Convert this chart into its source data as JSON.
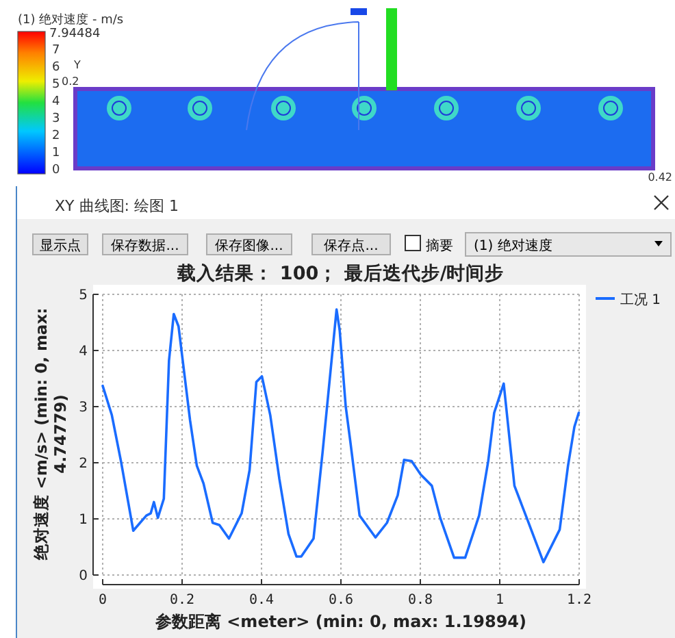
{
  "chart_data": [
    {
      "type": "other",
      "annotations": [
        "(1) 绝对速度 - m/s",
        "7.94484",
        "7",
        "6",
        "5",
        "4",
        "3",
        "2",
        "1",
        "0",
        "Y",
        "0.2",
        "0.42",
        "XY 曲线图: 绘图 1",
        "显示点",
        "保存数据...",
        "保存图像...",
        "保存点...",
        "摘要",
        "(1) 绝对速度"
      ]
    },
    {
      "type": "line",
      "title": "载入结果： 100； 最后迭代步/时间步",
      "xlabel": "参数距离 <meter> (min: 0, max: 1.19894)",
      "ylabel": "绝对速度 <m/s> (min: 0, max: 4.74779)",
      "xlim": [
        0,
        1.2
      ],
      "ylim": [
        0,
        5
      ],
      "xticks": [
        0,
        0.2,
        0.4,
        0.6,
        0.8,
        1,
        1.2
      ],
      "yticks": [
        0,
        1,
        2,
        3,
        4,
        5
      ],
      "grid": true,
      "legend": "top right",
      "marker": "none",
      "line_style": "solid",
      "series": [
        {
          "name": "工况 1",
          "color": "#1a6cff",
          "x": [
            0,
            0.023,
            0.046,
            0.077,
            0.11,
            0.121,
            0.129,
            0.139,
            0.154,
            0.167,
            0.179,
            0.191,
            0.22,
            0.237,
            0.254,
            0.277,
            0.294,
            0.318,
            0.35,
            0.37,
            0.387,
            0.401,
            0.422,
            0.445,
            0.468,
            0.488,
            0.5,
            0.531,
            0.554,
            0.589,
            0.597,
            0.612,
            0.624,
            0.647,
            0.687,
            0.716,
            0.743,
            0.759,
            0.778,
            0.801,
            0.829,
            0.85,
            0.885,
            0.913,
            0.948,
            0.971,
            0.986,
            1.01,
            1.037,
            1.07,
            1.11,
            1.151,
            1.172,
            1.188,
            1.199
          ],
          "values": [
            3.37,
            2.85,
            2.03,
            0.79,
            1.06,
            1.1,
            1.3,
            1.02,
            1.36,
            3.82,
            4.65,
            4.43,
            2.76,
            1.95,
            1.63,
            0.93,
            0.89,
            0.65,
            1.1,
            1.87,
            3.44,
            3.54,
            2.85,
            1.71,
            0.73,
            0.33,
            0.33,
            0.65,
            2.2,
            4.73,
            4.35,
            3.01,
            2.36,
            1.06,
            0.67,
            0.93,
            1.42,
            2.05,
            2.03,
            1.79,
            1.59,
            1.02,
            0.31,
            0.31,
            1.06,
            2.03,
            2.89,
            3.41,
            1.59,
            0.98,
            0.23,
            0.81,
            1.95,
            2.64,
            2.89
          ]
        }
      ]
    }
  ]
}
